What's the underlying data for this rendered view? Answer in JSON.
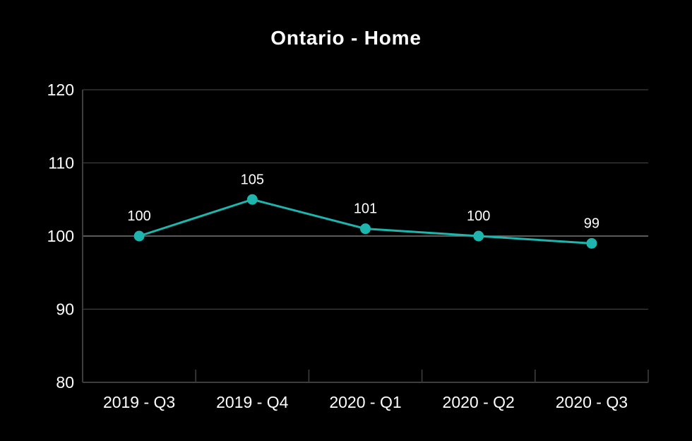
{
  "chart_data": {
    "type": "line",
    "title": "Ontario - Home",
    "categories": [
      "2019 - Q3",
      "2019 - Q4",
      "2020 - Q1",
      "2020 - Q2",
      "2020 - Q3"
    ],
    "values": [
      100,
      105,
      101,
      100,
      99
    ],
    "point_labels": [
      "100",
      "105",
      "101",
      "100",
      "99"
    ],
    "xlabel": "",
    "ylabel": "",
    "ylim": [
      80,
      120
    ],
    "y_ticks": [
      80,
      90,
      100,
      110,
      120
    ],
    "grid": true,
    "baseline_value": 100,
    "legend": "none",
    "colors": {
      "background": "#000000",
      "line": "#1db5ad",
      "point": "#1db5ad",
      "grid": "#3d3d3d",
      "baseline_grid": "#787878",
      "axis": "#3d3d3d",
      "text": "#ffffff"
    }
  }
}
